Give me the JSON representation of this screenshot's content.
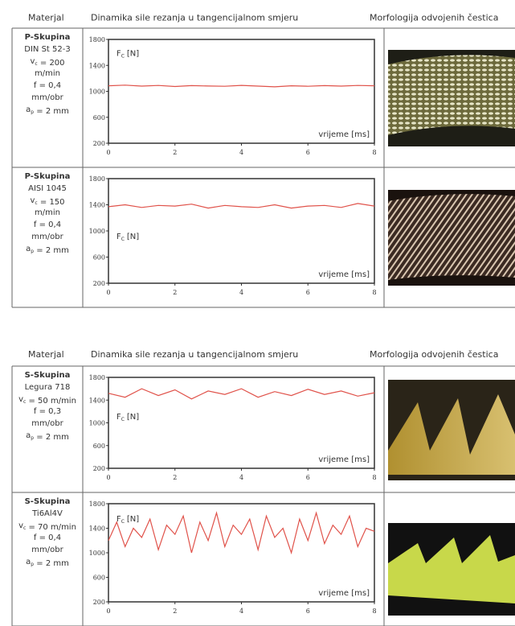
{
  "tables": [
    {
      "header": [
        "Materjal",
        "Dinamika sile rezanja u tangencijalnom smjeru",
        "Morfologija odvojenih čestica"
      ],
      "rows": [
        {
          "material": [
            [
              "P-Skupina"
            ],
            [
              "DIN St 52-3"
            ],
            [
              "v",
              {
                "sub": "c"
              },
              " = 200"
            ],
            [
              "m/min"
            ],
            [
              "f = 0,4"
            ],
            [
              "mm/obr"
            ],
            [
              "a",
              {
                "sub": "p"
              },
              " = 2 mm"
            ]
          ],
          "chart": {
            "type": "line",
            "label": [
              "F",
              "C",
              "[N]"
            ],
            "xlabel": "vrijeme [ms]",
            "color": "#e0524a",
            "x": [
              0,
              0.5,
              1,
              1.5,
              2,
              2.5,
              3,
              3.5,
              4,
              4.5,
              5,
              5.5,
              6,
              6.5,
              7,
              7.5,
              8
            ],
            "values": [
              1085,
              1095,
              1080,
              1090,
              1075,
              1088,
              1082,
              1078,
              1092,
              1080,
              1070,
              1085,
              1078,
              1088,
              1080,
              1090,
              1085
            ],
            "xlim": [
              0,
              8
            ],
            "ylim": [
              200,
              1800
            ],
            "xticks": [
              0,
              2,
              4,
              6,
              8
            ],
            "yticks": [
              200,
              600,
              1000,
              1400,
              1800
            ]
          }
        },
        {
          "material": [
            [
              "P-Skupina"
            ],
            [
              "AISI 1045"
            ],
            [
              "v",
              {
                "sub": "c"
              },
              " = 150"
            ],
            [
              "m/min"
            ],
            [
              "f = 0,4"
            ],
            [
              "mm/obr"
            ],
            [
              "a",
              {
                "sub": "p"
              },
              " = 2 mm"
            ]
          ],
          "chart": {
            "type": "line",
            "label": [
              "F",
              "C",
              "[N]"
            ],
            "xlabel": "vrijeme [ms]",
            "color": "#e0524a",
            "x": [
              0,
              0.5,
              1,
              1.5,
              2,
              2.5,
              3,
              3.5,
              4,
              4.5,
              5,
              5.5,
              6,
              6.5,
              7,
              7.5,
              8
            ],
            "values": [
              1370,
              1400,
              1360,
              1390,
              1380,
              1410,
              1350,
              1390,
              1370,
              1360,
              1400,
              1350,
              1380,
              1390,
              1360,
              1420,
              1380
            ],
            "xlim": [
              0,
              8
            ],
            "ylim": [
              200,
              1800
            ],
            "xticks": [
              0,
              2,
              4,
              6,
              8
            ],
            "yticks": [
              200,
              600,
              1000,
              1400,
              1800
            ]
          }
        }
      ]
    },
    {
      "header": [
        "Materjal",
        "Dinamika sile rezanja u tangencijalnom smjeru",
        "Morfologija odvojenih čestica"
      ],
      "rows": [
        {
          "material": [
            [
              "S-Skupina"
            ],
            [
              "Legura 718"
            ],
            [
              "v",
              {
                "sub": "c"
              },
              " = 50 m/min"
            ],
            [
              "f = 0,3"
            ],
            [
              "mm/obr"
            ],
            [
              "a",
              {
                "sub": "p"
              },
              " = 2 mm"
            ]
          ],
          "chart": {
            "type": "line",
            "label": [
              "F",
              "C",
              "[N]"
            ],
            "xlabel": "vrijeme [ms]",
            "color": "#e0524a",
            "x": [
              0,
              0.5,
              1,
              1.5,
              2,
              2.5,
              3,
              3.5,
              4,
              4.5,
              5,
              5.5,
              6,
              6.5,
              7,
              7.5,
              8
            ],
            "values": [
              1520,
              1450,
              1600,
              1480,
              1580,
              1420,
              1560,
              1500,
              1600,
              1450,
              1550,
              1480,
              1590,
              1500,
              1560,
              1470,
              1530
            ],
            "xlim": [
              0,
              8
            ],
            "ylim": [
              200,
              1800
            ],
            "xticks": [
              0,
              2,
              4,
              6,
              8
            ],
            "yticks": [
              200,
              600,
              1000,
              1400,
              1800
            ]
          }
        },
        {
          "material": [
            [
              "S-Skupina"
            ],
            [
              "Ti6Al4V"
            ],
            [
              "v",
              {
                "sub": "c"
              },
              " = 70 m/min"
            ],
            [
              "f = 0,4"
            ],
            [
              "mm/obr"
            ],
            [
              "a",
              {
                "sub": "p"
              },
              " = 2 mm"
            ]
          ],
          "chart": {
            "type": "line",
            "label": [
              "F",
              "C",
              "[N]"
            ],
            "xlabel": "vrijeme [ms]",
            "color": "#e0524a",
            "x": [
              0,
              0.25,
              0.5,
              0.75,
              1,
              1.25,
              1.5,
              1.75,
              2,
              2.25,
              2.5,
              2.75,
              3,
              3.25,
              3.5,
              3.75,
              4,
              4.25,
              4.5,
              4.75,
              5,
              5.25,
              5.5,
              5.75,
              6,
              6.25,
              6.5,
              6.75,
              7,
              7.25,
              7.5,
              7.75,
              8
            ],
            "values": [
              1200,
              1500,
              1100,
              1400,
              1250,
              1550,
              1050,
              1450,
              1300,
              1600,
              1000,
              1500,
              1200,
              1650,
              1100,
              1450,
              1300,
              1550,
              1050,
              1600,
              1250,
              1400,
              1000,
              1550,
              1200,
              1650,
              1150,
              1450,
              1300,
              1600,
              1100,
              1400,
              1350
            ],
            "xlim": [
              0,
              8
            ],
            "ylim": [
              200,
              1800
            ],
            "xticks": [
              0,
              2,
              4,
              6,
              8
            ],
            "yticks": [
              200,
              600,
              1000,
              1400,
              1800
            ]
          }
        }
      ]
    }
  ]
}
